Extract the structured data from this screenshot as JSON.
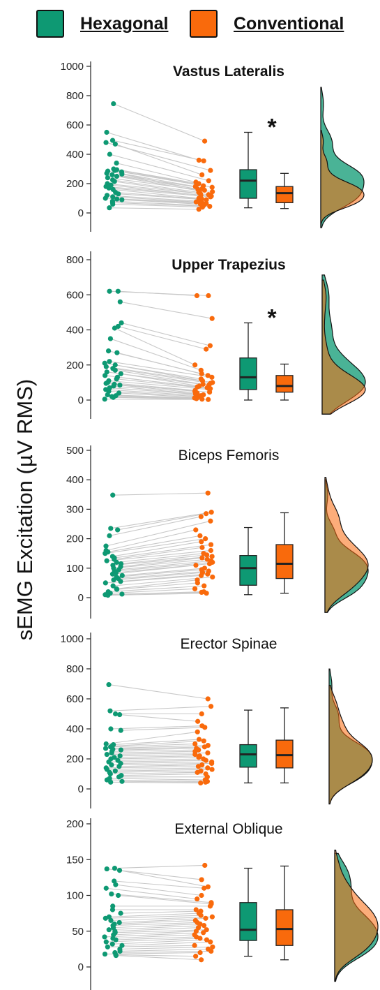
{
  "legend": {
    "items": [
      {
        "label": "Hexagonal",
        "color": "#0e9973"
      },
      {
        "label": "Conventional",
        "color": "#f96a0c"
      }
    ]
  },
  "ylabel": "sEMG Excitation (µV RMS)",
  "colors": {
    "hexagonal": "#0e9973",
    "conventional": "#f96a0c",
    "lines": "#c8c8c8",
    "overlap": "#a0855a"
  },
  "chart_data": [
    {
      "type": "raincloud",
      "title": "Vastus Lateralis",
      "title_bold": true,
      "significant": true,
      "significance_marker": "*",
      "ylim": [
        0,
        1000
      ],
      "ticks": [
        0,
        200,
        400,
        600,
        800,
        1000
      ],
      "hexagonal": [
        745,
        550,
        495,
        480,
        470,
        400,
        340,
        300,
        295,
        290,
        285,
        280,
        270,
        265,
        260,
        250,
        240,
        225,
        215,
        200,
        190,
        180,
        170,
        160,
        140,
        130,
        120,
        110,
        100,
        95,
        90,
        80,
        70,
        60,
        35
      ],
      "conventional": [
        490,
        360,
        355,
        290,
        260,
        220,
        210,
        200,
        195,
        185,
        180,
        175,
        170,
        160,
        155,
        150,
        145,
        140,
        130,
        125,
        120,
        115,
        110,
        100,
        95,
        90,
        80,
        75,
        70,
        65,
        60,
        50,
        45,
        40,
        25
      ],
      "box_hexagonal": {
        "min": 35,
        "q1": 100,
        "median": 220,
        "q3": 295,
        "max": 550
      },
      "box_conventional": {
        "min": 30,
        "q1": 70,
        "median": 135,
        "q3": 180,
        "max": 270
      },
      "density_peak_hexagonal": 260,
      "density_peak_conventional": 100
    },
    {
      "type": "raincloud",
      "title": "Upper Trapezius",
      "title_bold": true,
      "significant": true,
      "significance_marker": "*",
      "ylim": [
        0,
        800
      ],
      "ticks": [
        0,
        200,
        400,
        600,
        800
      ],
      "hexagonal": [
        620,
        620,
        560,
        440,
        420,
        410,
        350,
        280,
        270,
        220,
        210,
        200,
        190,
        180,
        170,
        160,
        150,
        140,
        130,
        120,
        110,
        100,
        95,
        90,
        85,
        80,
        70,
        60,
        50,
        40,
        30,
        25,
        20,
        15,
        5
      ],
      "conventional": [
        595,
        595,
        465,
        310,
        290,
        200,
        170,
        150,
        140,
        130,
        120,
        110,
        100,
        95,
        90,
        85,
        80,
        75,
        70,
        65,
        60,
        55,
        50,
        45,
        40,
        35,
        30,
        25,
        20,
        15,
        12,
        10,
        8,
        5,
        3
      ],
      "box_hexagonal": {
        "min": 0,
        "q1": 60,
        "median": 130,
        "q3": 240,
        "max": 440
      },
      "box_conventional": {
        "min": 0,
        "q1": 45,
        "median": 80,
        "q3": 140,
        "max": 205
      },
      "density_peak_hexagonal": 110,
      "density_peak_conventional": 60
    },
    {
      "type": "raincloud",
      "title": "Biceps Femoris",
      "title_bold": false,
      "significant": false,
      "ylim": [
        0,
        500
      ],
      "ticks": [
        0,
        100,
        200,
        300,
        400,
        500
      ],
      "hexagonal": [
        348,
        235,
        230,
        210,
        175,
        160,
        155,
        150,
        140,
        135,
        130,
        125,
        120,
        115,
        110,
        105,
        100,
        95,
        90,
        85,
        80,
        75,
        70,
        65,
        60,
        55,
        50,
        40,
        30,
        28,
        20,
        15,
        12,
        10,
        8
      ],
      "conventional": [
        355,
        290,
        285,
        275,
        260,
        230,
        210,
        200,
        190,
        180,
        170,
        160,
        150,
        145,
        140,
        135,
        130,
        125,
        120,
        115,
        110,
        100,
        95,
        90,
        85,
        80,
        75,
        70,
        60,
        50,
        40,
        30,
        20,
        18,
        15
      ],
      "box_hexagonal": {
        "min": 10,
        "q1": 42,
        "median": 100,
        "q3": 143,
        "max": 238
      },
      "box_conventional": {
        "min": 15,
        "q1": 65,
        "median": 115,
        "q3": 180,
        "max": 288
      },
      "density_peak_hexagonal": 95,
      "density_peak_conventional": 110
    },
    {
      "type": "raincloud",
      "title": "Erector Spinae",
      "title_bold": false,
      "significant": false,
      "ylim": [
        0,
        1000
      ],
      "ticks": [
        0,
        200,
        400,
        600,
        800,
        1000
      ],
      "hexagonal": [
        695,
        520,
        500,
        495,
        400,
        390,
        300,
        295,
        285,
        280,
        270,
        265,
        260,
        250,
        240,
        230,
        220,
        210,
        200,
        190,
        180,
        170,
        160,
        150,
        140,
        130,
        120,
        110,
        100,
        90,
        80,
        70,
        60,
        50,
        45
      ],
      "conventional": [
        600,
        550,
        500,
        450,
        420,
        410,
        380,
        330,
        320,
        300,
        290,
        280,
        270,
        260,
        250,
        240,
        230,
        220,
        210,
        200,
        190,
        180,
        170,
        160,
        150,
        140,
        130,
        120,
        110,
        100,
        80,
        60,
        50,
        45,
        40
      ],
      "box_hexagonal": {
        "min": 40,
        "q1": 145,
        "median": 230,
        "q3": 295,
        "max": 525
      },
      "box_conventional": {
        "min": 40,
        "q1": 140,
        "median": 225,
        "q3": 325,
        "max": 540
      },
      "density_peak_hexagonal": 200,
      "density_peak_conventional": 200
    },
    {
      "type": "raincloud",
      "title": "External Oblique",
      "title_bold": false,
      "significant": false,
      "ylim": [
        0,
        200
      ],
      "ticks": [
        0,
        50,
        100,
        150,
        200
      ],
      "hexagonal": [
        138,
        137,
        135,
        120,
        115,
        110,
        102,
        100,
        85,
        80,
        75,
        70,
        68,
        65,
        62,
        60,
        58,
        55,
        52,
        50,
        48,
        45,
        42,
        40,
        38,
        35,
        32,
        30,
        28,
        25,
        22,
        20,
        18,
        17,
        16
      ],
      "conventional": [
        142,
        122,
        112,
        110,
        100,
        95,
        90,
        88,
        85,
        80,
        78,
        75,
        72,
        70,
        68,
        65,
        62,
        60,
        58,
        55,
        52,
        50,
        48,
        45,
        42,
        40,
        38,
        35,
        30,
        28,
        25,
        22,
        20,
        15,
        10
      ],
      "box_hexagonal": {
        "min": 15,
        "q1": 37,
        "median": 52,
        "q3": 90,
        "max": 138
      },
      "box_conventional": {
        "min": 10,
        "q1": 30,
        "median": 53,
        "q3": 80,
        "max": 141
      },
      "density_peak_hexagonal": 45,
      "density_peak_conventional": 48
    }
  ]
}
